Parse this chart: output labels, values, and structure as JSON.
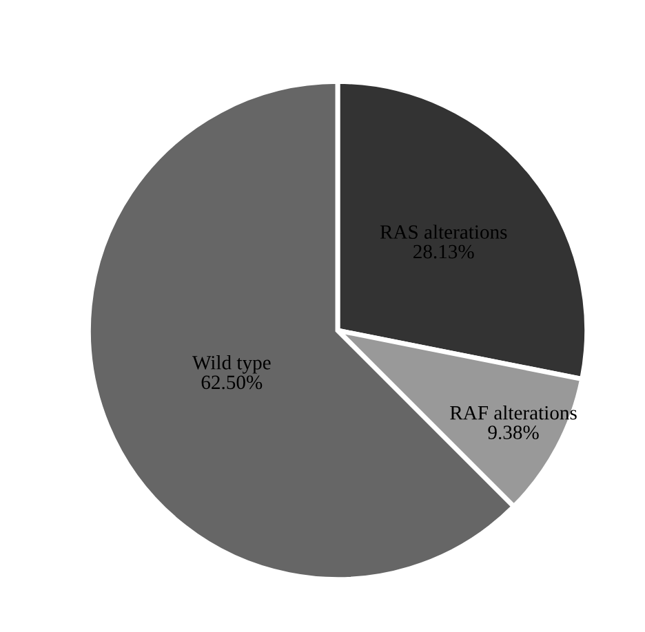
{
  "chart_data": {
    "type": "pie",
    "categories": [
      "RAS alterations",
      "RAF alterations",
      "Wild type"
    ],
    "values": [
      28.13,
      9.38,
      62.5
    ],
    "colors": [
      "#333333",
      "#999999",
      "#666666"
    ],
    "value_labels": [
      "28.13%",
      "9.38%",
      "62.50%"
    ],
    "legend": false
  }
}
